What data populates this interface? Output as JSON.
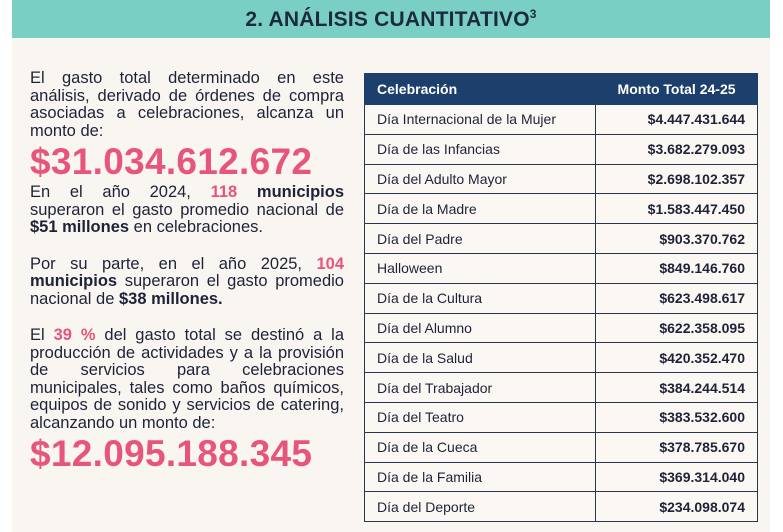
{
  "header": {
    "title": "2. ANÁLISIS CUANTITATIVO",
    "footnote": "3"
  },
  "left": {
    "p1": "El gasto total determinado en este análisis, derivado de órdenes de compra asociadas a celebraciones, alcanza un monto de:",
    "total": "$31.034.612.672",
    "p2": {
      "a": "En el año 2024, ",
      "b": "118",
      "c": " municipios",
      "d": " superaron el gasto promedio nacional de ",
      "e": "$51 millones",
      "f": " en celebraciones."
    },
    "p3": {
      "a": "Por su parte, en el año 2025, ",
      "b": "104",
      "c": " municipios",
      "d": " superaron el gasto promedio nacional de ",
      "e": "$38 millones."
    },
    "p4": {
      "a": "El ",
      "b": "39 %",
      "c": " del gasto total se destinó a la producción de actividades y a la provisión de servicios para celebraciones municipales, tales como baños químicos, equipos de sonido y servicios de catering, alcanzando un monto de:"
    },
    "total2": "$12.095.188.345"
  },
  "table": {
    "headers": [
      "Celebración",
      "Monto Total 24-25"
    ],
    "rows": [
      [
        "Día Internacional de la Mujer",
        "$4.447.431.644"
      ],
      [
        "Día de las Infancias",
        "$3.682.279.093"
      ],
      [
        "Día del Adulto Mayor",
        "$2.698.102.357"
      ],
      [
        "Día de la Madre",
        "$1.583.447.450"
      ],
      [
        "Día del Padre",
        "$903.370.762"
      ],
      [
        "Halloween",
        "$849.146.760"
      ],
      [
        "Día de la Cultura",
        "$623.498.617"
      ],
      [
        "Día del Alumno",
        "$622.358.095"
      ],
      [
        "Día de la Salud",
        "$420.352.470"
      ],
      [
        "Día del Trabajador",
        "$384.244.514"
      ],
      [
        "Día del Teatro",
        "$383.532.600"
      ],
      [
        "Día de la Cueca",
        "$378.785.670"
      ],
      [
        "Día de la Familia",
        "$369.314.040"
      ],
      [
        "Día del Deporte",
        "$234.098.074"
      ]
    ]
  }
}
